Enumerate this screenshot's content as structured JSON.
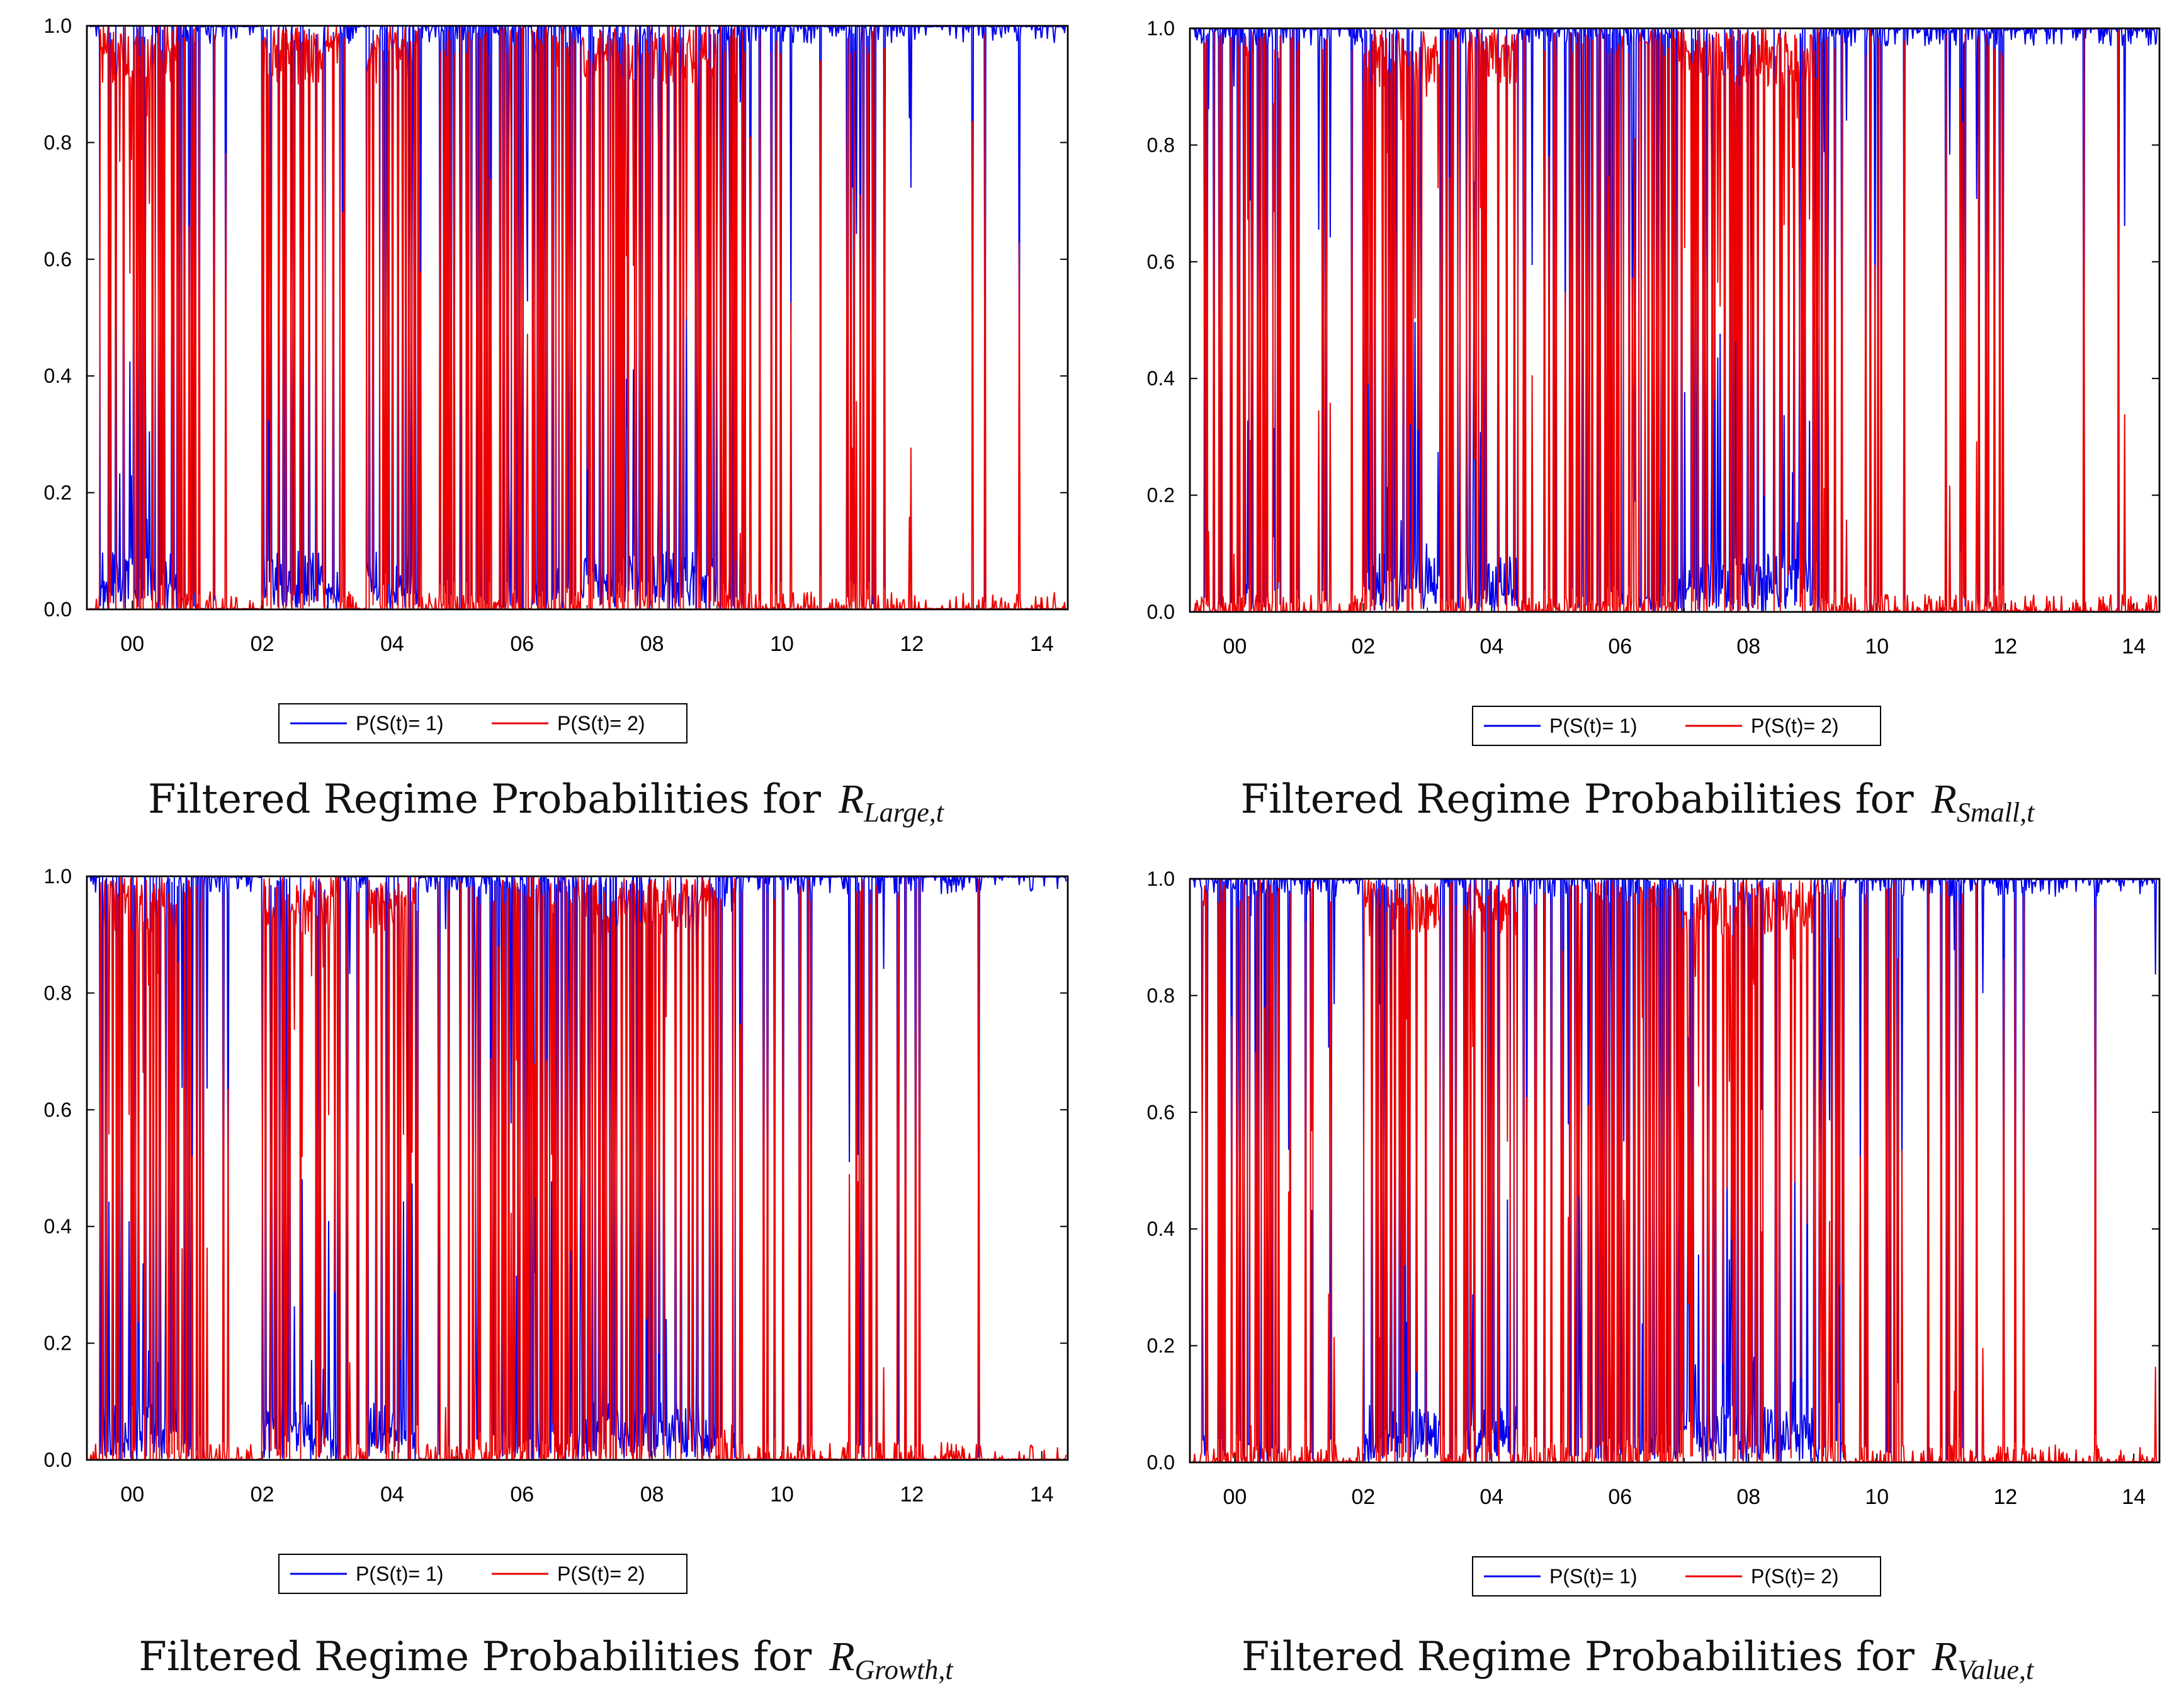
{
  "figure": {
    "legend": {
      "series1": "P(S(t)= 1)",
      "series2": "P(S(t)= 2)"
    }
  },
  "colors": {
    "regime1": "#0000ee",
    "regime2": "#ee0000",
    "axis": "#000000"
  },
  "chart_data": [
    {
      "type": "line",
      "id": "large",
      "caption": "Filtered Regime Probabilities for",
      "math_base": "R",
      "math_sub": "Large,t",
      "xlim": [
        1999.3,
        2014.4
      ],
      "ylim": [
        0,
        1
      ],
      "x_ticks": [
        "00",
        "02",
        "04",
        "06",
        "08",
        "10",
        "12",
        "14"
      ],
      "y_ticks": [
        "0.0",
        "0.2",
        "0.4",
        "0.6",
        "0.8",
        "1.0"
      ],
      "series": [
        {
          "name": "P(S(t)= 1)"
        },
        {
          "name": "P(S(t)= 2)"
        }
      ],
      "seed": 11,
      "switch_segments": [
        [
          1999.5,
          2000.0,
          0.75
        ],
        [
          2000.0,
          2000.7,
          0.65
        ],
        [
          2000.7,
          2001.0,
          0.35
        ],
        [
          2001.0,
          2001.5,
          0.12
        ],
        [
          2002.0,
          2003.2,
          0.8
        ],
        [
          2003.2,
          2003.6,
          0.2
        ],
        [
          2003.6,
          2004.4,
          0.65
        ],
        [
          2004.4,
          2005.1,
          0.18
        ],
        [
          2005.1,
          2006.2,
          0.45
        ],
        [
          2006.2,
          2006.9,
          0.55
        ],
        [
          2006.9,
          2008.0,
          0.7
        ],
        [
          2008.0,
          2009.0,
          0.75
        ],
        [
          2009.0,
          2009.4,
          0.4
        ],
        [
          2009.4,
          2010.5,
          0.15
        ],
        [
          2011.0,
          2011.4,
          0.35
        ],
        [
          2011.4,
          2012.0,
          0.08
        ],
        [
          2012.0,
          2014.4,
          0.03
        ]
      ]
    },
    {
      "type": "line",
      "id": "small",
      "caption": "Filtered Regime Probabilities for",
      "math_base": "R",
      "math_sub": "Small,t",
      "xlim": [
        1999.3,
        2014.4
      ],
      "ylim": [
        0,
        1
      ],
      "x_ticks": [
        "00",
        "02",
        "04",
        "06",
        "08",
        "10",
        "12",
        "14"
      ],
      "y_ticks": [
        "0.0",
        "0.2",
        "0.4",
        "0.6",
        "0.8",
        "1.0"
      ],
      "series": [
        {
          "name": "P(S(t)= 1)"
        },
        {
          "name": "P(S(t)= 2)"
        }
      ],
      "seed": 23,
      "switch_segments": [
        [
          1999.5,
          2000.0,
          0.35
        ],
        [
          2000.0,
          2000.7,
          0.5
        ],
        [
          2000.7,
          2001.5,
          0.15
        ],
        [
          2002.0,
          2003.2,
          0.85
        ],
        [
          2003.2,
          2003.6,
          0.3
        ],
        [
          2003.6,
          2004.4,
          0.7
        ],
        [
          2004.4,
          2005.1,
          0.2
        ],
        [
          2005.1,
          2006.2,
          0.45
        ],
        [
          2006.2,
          2006.9,
          0.55
        ],
        [
          2006.9,
          2008.0,
          0.75
        ],
        [
          2008.0,
          2009.0,
          0.8
        ],
        [
          2009.0,
          2009.5,
          0.45
        ],
        [
          2009.5,
          2010.5,
          0.12
        ],
        [
          2011.0,
          2011.4,
          0.3
        ],
        [
          2011.4,
          2012.0,
          0.08
        ],
        [
          2012.0,
          2014.4,
          0.03
        ]
      ]
    },
    {
      "type": "line",
      "id": "growth",
      "caption": "Filtered Regime Probabilities for",
      "math_base": "R",
      "math_sub": "Growth,t",
      "xlim": [
        1999.3,
        2014.4
      ],
      "ylim": [
        0,
        1
      ],
      "x_ticks": [
        "00",
        "02",
        "04",
        "06",
        "08",
        "10",
        "12",
        "14"
      ],
      "y_ticks": [
        "0.0",
        "0.2",
        "0.4",
        "0.6",
        "0.8",
        "1.0"
      ],
      "series": [
        {
          "name": "P(S(t)= 1)"
        },
        {
          "name": "P(S(t)= 2)"
        }
      ],
      "seed": 37,
      "switch_segments": [
        [
          1999.5,
          2000.0,
          0.75
        ],
        [
          2000.0,
          2000.7,
          0.65
        ],
        [
          2000.7,
          2001.0,
          0.35
        ],
        [
          2001.0,
          2001.5,
          0.12
        ],
        [
          2002.0,
          2003.2,
          0.8
        ],
        [
          2003.2,
          2003.6,
          0.2
        ],
        [
          2003.6,
          2004.4,
          0.65
        ],
        [
          2004.4,
          2005.1,
          0.18
        ],
        [
          2005.1,
          2006.2,
          0.45
        ],
        [
          2006.2,
          2006.9,
          0.55
        ],
        [
          2006.9,
          2008.0,
          0.7
        ],
        [
          2008.0,
          2009.0,
          0.75
        ],
        [
          2009.0,
          2009.4,
          0.4
        ],
        [
          2009.4,
          2010.5,
          0.15
        ],
        [
          2011.0,
          2011.4,
          0.35
        ],
        [
          2011.4,
          2012.0,
          0.08
        ],
        [
          2012.0,
          2014.4,
          0.03
        ]
      ]
    },
    {
      "type": "line",
      "id": "value",
      "caption": "Filtered Regime Probabilities for",
      "math_base": "R",
      "math_sub": "Value,t",
      "xlim": [
        1999.3,
        2014.4
      ],
      "ylim": [
        0,
        1
      ],
      "x_ticks": [
        "00",
        "02",
        "04",
        "06",
        "08",
        "10",
        "12",
        "14"
      ],
      "y_ticks": [
        "0.0",
        "0.2",
        "0.4",
        "0.6",
        "0.8",
        "1.0"
      ],
      "series": [
        {
          "name": "P(S(t)= 1)"
        },
        {
          "name": "P(S(t)= 2)"
        }
      ],
      "seed": 53,
      "switch_segments": [
        [
          1999.5,
          2000.0,
          0.35
        ],
        [
          2000.0,
          2000.7,
          0.5
        ],
        [
          2000.7,
          2001.5,
          0.15
        ],
        [
          2002.0,
          2003.2,
          0.85
        ],
        [
          2003.2,
          2003.6,
          0.3
        ],
        [
          2003.6,
          2004.4,
          0.7
        ],
        [
          2004.4,
          2005.1,
          0.2
        ],
        [
          2005.1,
          2006.2,
          0.45
        ],
        [
          2006.2,
          2006.9,
          0.55
        ],
        [
          2006.9,
          2008.0,
          0.75
        ],
        [
          2008.0,
          2009.0,
          0.8
        ],
        [
          2009.0,
          2009.5,
          0.45
        ],
        [
          2009.5,
          2010.5,
          0.12
        ],
        [
          2011.0,
          2011.4,
          0.3
        ],
        [
          2011.4,
          2012.0,
          0.08
        ],
        [
          2012.0,
          2014.4,
          0.03
        ]
      ]
    }
  ]
}
